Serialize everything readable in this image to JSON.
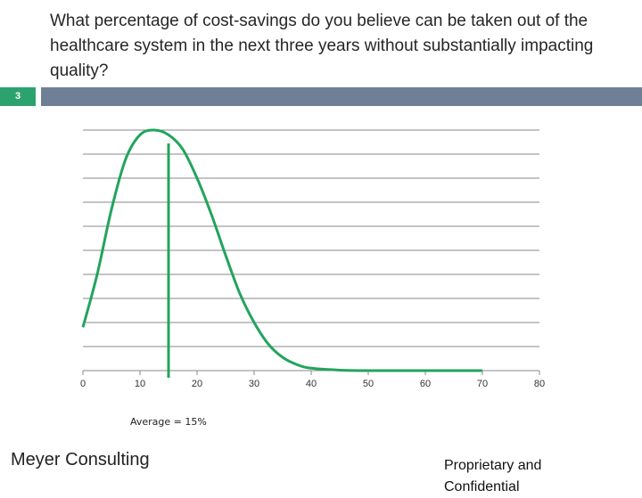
{
  "slide": {
    "title": "What percentage of cost-savings do you believe can be taken out of the healthcare system in the next three years without substantially impacting quality?",
    "slide_number": "3",
    "average_label": "Average = 15%",
    "footer_left": "Meyer Consulting",
    "footer_right": "Proprietary and Confidential"
  },
  "colors": {
    "accent_green": "#22a45d",
    "slide_number_bg": "#2ca36f",
    "header_bar": "#6f8096",
    "gridline": "#8a8a8a"
  },
  "chart_data": {
    "type": "line",
    "title": "",
    "xlabel": "",
    "ylabel": "",
    "x_ticks": [
      0,
      10,
      20,
      30,
      40,
      50,
      60,
      70,
      80
    ],
    "xlim": [
      0,
      80
    ],
    "ylim": [
      0,
      10
    ],
    "grid": true,
    "average": 15,
    "series": [
      {
        "values_x": [
          0,
          2.5,
          5,
          7.5,
          10,
          12.5,
          15,
          17.5,
          20,
          22.5,
          25,
          27.5,
          30,
          32.5,
          35,
          37.5,
          40,
          45,
          50,
          55,
          60,
          65,
          70
        ],
        "values_y": [
          1.8,
          4.0,
          6.7,
          8.8,
          9.8,
          10.0,
          9.8,
          9.2,
          8.0,
          6.5,
          4.8,
          3.2,
          2.0,
          1.1,
          0.55,
          0.25,
          0.1,
          0.02,
          0,
          0,
          0,
          0,
          0
        ]
      }
    ]
  }
}
